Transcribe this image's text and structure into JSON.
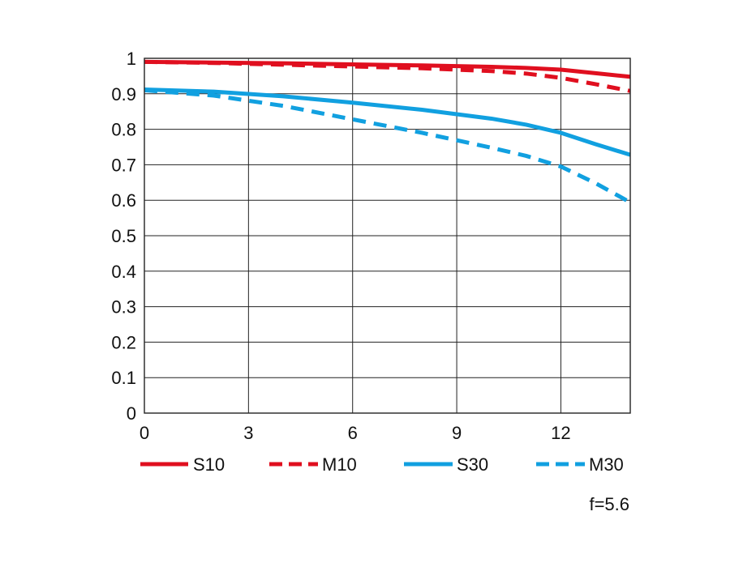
{
  "chart_data": {
    "type": "line",
    "title": "",
    "xlabel": "",
    "ylabel": "",
    "xlim": [
      0,
      14
    ],
    "ylim": [
      0,
      1
    ],
    "x_ticks": [
      0,
      3,
      6,
      9,
      12
    ],
    "x_tick_labels": [
      "0",
      "3",
      "6",
      "9",
      "12"
    ],
    "y_ticks": [
      0,
      0.1,
      0.2,
      0.3,
      0.4,
      0.5,
      0.6,
      0.7,
      0.8,
      0.9,
      1
    ],
    "y_tick_labels": [
      "0",
      "0.1",
      "0.2",
      "0.3",
      "0.4",
      "0.5",
      "0.6",
      "0.7",
      "0.8",
      "0.9",
      "1"
    ],
    "grid": true,
    "legend_position": "bottom",
    "annotation": "f=5.6",
    "series": [
      {
        "name": "S10",
        "color": "#e00f1f",
        "dash": "solid",
        "x": [
          0,
          2,
          4,
          6,
          8,
          10,
          11,
          12,
          13,
          14
        ],
        "y": [
          0.99,
          0.988,
          0.986,
          0.983,
          0.98,
          0.976,
          0.973,
          0.968,
          0.958,
          0.948
        ]
      },
      {
        "name": "M10",
        "color": "#e00f1f",
        "dash": "dashed",
        "x": [
          0,
          2,
          4,
          6,
          8,
          10,
          11,
          12,
          13,
          14
        ],
        "y": [
          0.99,
          0.987,
          0.982,
          0.977,
          0.972,
          0.964,
          0.957,
          0.945,
          0.927,
          0.908
        ]
      },
      {
        "name": "S30",
        "color": "#11a0e0",
        "dash": "solid",
        "x": [
          0,
          2,
          4,
          6,
          8,
          10,
          11,
          12,
          13,
          14
        ],
        "y": [
          0.912,
          0.906,
          0.893,
          0.875,
          0.855,
          0.83,
          0.813,
          0.79,
          0.758,
          0.728
        ]
      },
      {
        "name": "M30",
        "color": "#11a0e0",
        "dash": "dashed",
        "x": [
          0,
          2,
          4,
          6,
          8,
          10,
          11,
          12,
          13,
          14
        ],
        "y": [
          0.91,
          0.895,
          0.866,
          0.828,
          0.79,
          0.748,
          0.725,
          0.695,
          0.648,
          0.594
        ]
      }
    ]
  }
}
